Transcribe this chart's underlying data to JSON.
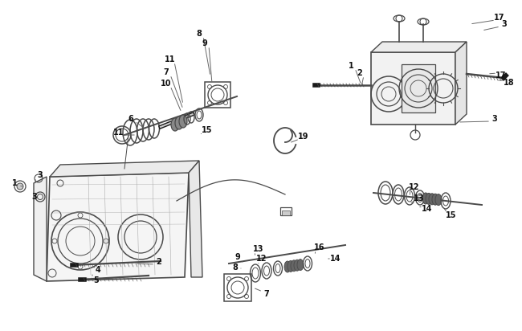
{
  "bg_color": "#f0f0f0",
  "lc": "#4a4a4a",
  "dc": "#1a1a1a",
  "mc": "#888888",
  "fc": "#d0d0d0",
  "labels": [
    [
      8,
      248,
      42,
      262,
      95,
      0
    ],
    [
      9,
      255,
      54,
      264,
      104,
      0
    ],
    [
      11,
      212,
      74,
      228,
      130,
      0
    ],
    [
      7,
      207,
      90,
      228,
      136,
      0
    ],
    [
      10,
      207,
      104,
      226,
      140,
      0
    ],
    [
      6,
      163,
      148,
      183,
      162,
      0
    ],
    [
      11,
      148,
      165,
      170,
      168,
      0
    ],
    [
      15,
      258,
      162,
      248,
      168,
      0
    ],
    [
      19,
      378,
      170,
      360,
      178,
      0
    ],
    [
      3,
      628,
      30,
      600,
      38,
      0
    ],
    [
      17,
      622,
      22,
      585,
      30,
      0
    ],
    [
      1,
      437,
      82,
      450,
      106,
      0
    ],
    [
      2,
      448,
      91,
      450,
      108,
      0
    ],
    [
      17,
      624,
      94,
      607,
      92,
      0
    ],
    [
      18,
      634,
      103,
      618,
      100,
      0
    ],
    [
      3,
      616,
      148,
      570,
      152,
      0
    ],
    [
      1,
      18,
      228,
      28,
      232,
      0
    ],
    [
      3,
      50,
      218,
      43,
      228,
      0
    ],
    [
      3,
      43,
      245,
      43,
      242,
      0
    ],
    [
      2,
      198,
      326,
      168,
      328,
      0
    ],
    [
      4,
      122,
      336,
      118,
      332,
      0
    ],
    [
      5,
      120,
      349,
      115,
      342,
      0
    ],
    [
      9,
      296,
      320,
      302,
      326,
      0
    ],
    [
      8,
      293,
      333,
      300,
      334,
      0
    ],
    [
      13,
      322,
      310,
      318,
      320,
      0
    ],
    [
      12,
      326,
      322,
      322,
      328,
      0
    ],
    [
      7,
      332,
      366,
      315,
      358,
      0
    ],
    [
      16,
      398,
      308,
      392,
      318,
      0
    ],
    [
      14,
      418,
      322,
      406,
      322,
      0
    ],
    [
      12,
      516,
      233,
      510,
      245,
      0
    ],
    [
      13,
      522,
      247,
      512,
      252,
      0
    ],
    [
      14,
      532,
      260,
      520,
      258,
      0
    ],
    [
      15,
      562,
      268,
      552,
      258,
      0
    ]
  ]
}
